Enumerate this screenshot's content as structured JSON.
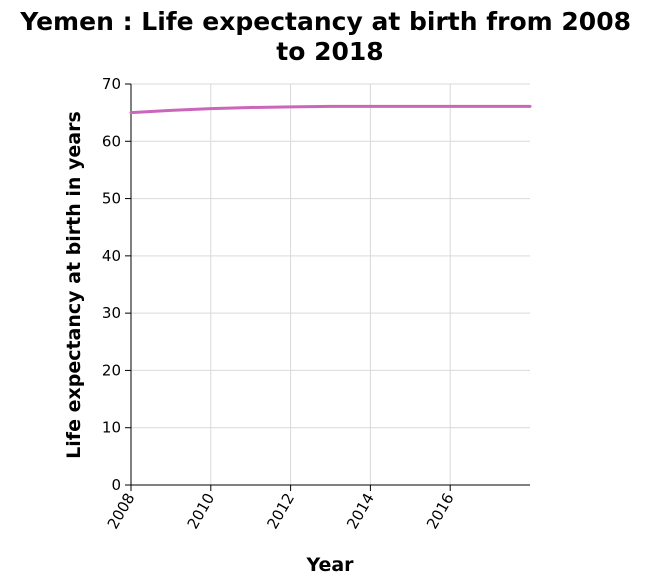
{
  "chart_data": {
    "type": "line",
    "title_lines": [
      "Yemen : Life expectancy at birth from 2008",
      "to 2018"
    ],
    "xlabel": "Year",
    "ylabel": "Life expectancy at birth in years",
    "xlim": [
      2008,
      2018
    ],
    "ylim": [
      0,
      70
    ],
    "x_ticks": [
      2008,
      2010,
      2012,
      2014,
      2016
    ],
    "y_ticks": [
      0,
      10,
      20,
      30,
      40,
      50,
      60,
      70
    ],
    "grid": true,
    "colors": {
      "line": "#cc66bb"
    },
    "series": [
      {
        "x": [
          2008,
          2009,
          2010,
          2011,
          2012,
          2013,
          2014,
          2015,
          2016,
          2017,
          2018
        ],
        "values": [
          65.0,
          65.4,
          65.7,
          65.9,
          66.0,
          66.1,
          66.1,
          66.1,
          66.1,
          66.1,
          66.1
        ]
      }
    ]
  }
}
